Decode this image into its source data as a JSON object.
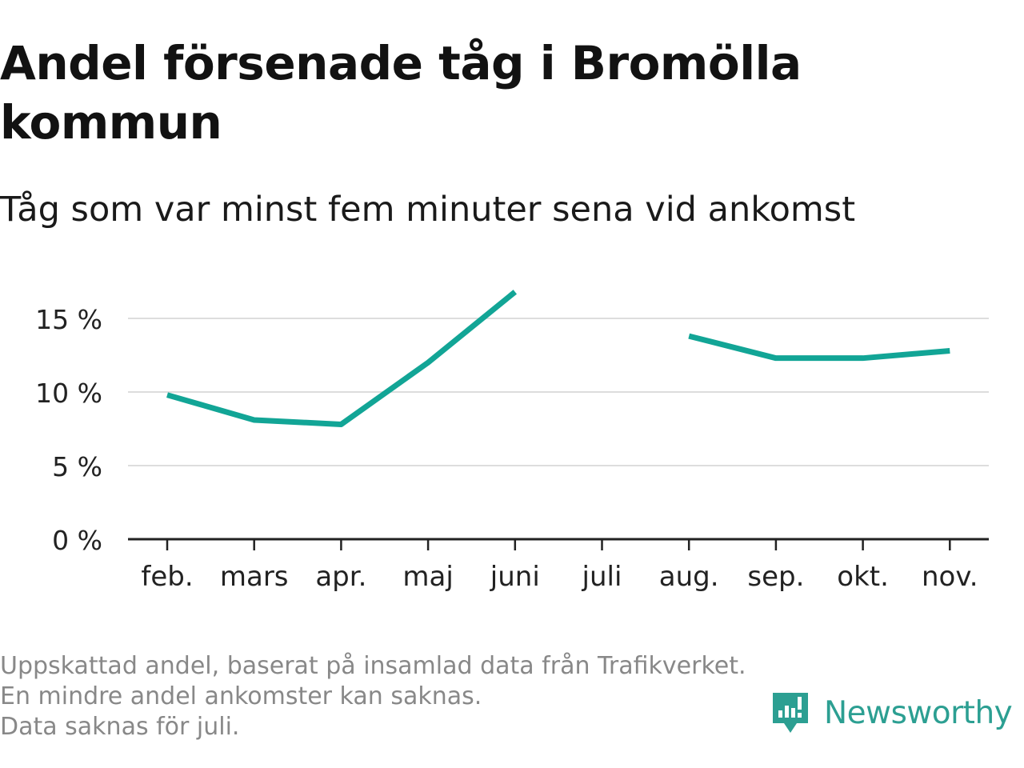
{
  "title": "Andel försenade tåg i Bromölla kommun",
  "subtitle": "Tåg som var minst fem minuter sena vid ankomst",
  "footnote": {
    "line1": "Uppskattad andel, baserat på insamlad data från Trafikverket. En mindre andel ankomster kan saknas.",
    "line2": "Data saknas för juli."
  },
  "brand": {
    "name": "Newsworthy",
    "icon": "newsworthy-logo-icon",
    "color": "#2c9f92"
  },
  "colors": {
    "line": "#12a596",
    "grid": "#dddddd",
    "axis": "#222222"
  },
  "chart_data": {
    "type": "line",
    "categories": [
      "feb.",
      "mars",
      "apr.",
      "maj",
      "juni",
      "juli",
      "aug.",
      "sep.",
      "okt.",
      "nov."
    ],
    "series": [
      {
        "values": [
          9.8,
          8.1,
          7.8,
          12.0,
          16.8,
          null,
          13.8,
          12.3,
          12.3,
          12.8
        ]
      }
    ],
    "yticks": [
      "0 %",
      "5 %",
      "10 %",
      "15 %"
    ],
    "ytick_values": [
      0,
      5,
      10,
      15
    ],
    "ylim": [
      0,
      15
    ],
    "grid": true,
    "xlabel": "",
    "ylabel": ""
  }
}
